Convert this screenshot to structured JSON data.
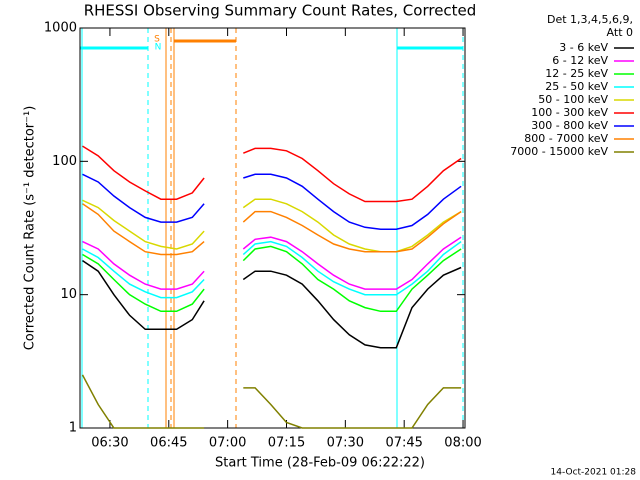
{
  "chart_data": {
    "type": "line",
    "title": "RHESSI Observing Summary Count Rates, Corrected",
    "x_label": "Start Time (28-Feb-09 06:22:22)",
    "y_label": "Corrected Count Rate (s⁻¹ detector⁻¹)",
    "legend_header": [
      "Det 1,3,4,5,6,9,",
      "Att 0"
    ],
    "annotations": [
      "S",
      "N"
    ],
    "footer": "14-Oct-2021 01:28",
    "log_y": true,
    "legend_position": "right",
    "xlim": [
      22.37,
      120.5
    ],
    "ylim": [
      1,
      1000
    ],
    "xticks": [
      {
        "value": 30,
        "label": "06:30"
      },
      {
        "value": 45,
        "label": "06:45"
      },
      {
        "value": 60,
        "label": "07:00"
      },
      {
        "value": 75,
        "label": "07:15"
      },
      {
        "value": 90,
        "label": "07:30"
      },
      {
        "value": 105,
        "label": "07:45"
      },
      {
        "value": 120,
        "label": "08:00"
      }
    ],
    "yticks": [
      1,
      10,
      100,
      1000
    ],
    "x": [
      23,
      27,
      31,
      35,
      39,
      43,
      47,
      51,
      54,
      58,
      64,
      67,
      71,
      75,
      79,
      83,
      87,
      91,
      95,
      99,
      103,
      107,
      111,
      115,
      119.5
    ],
    "series": [
      {
        "name": "3 - 6 keV",
        "color": "#000000",
        "values": [
          18,
          15,
          10,
          7,
          5.5,
          5.5,
          5.5,
          6.5,
          9,
          null,
          13,
          15,
          15,
          14,
          12,
          9,
          6.5,
          5,
          4.2,
          4,
          4,
          8,
          11,
          14,
          16
        ]
      },
      {
        "name": "6 - 12 keV",
        "color": "#ff00ff",
        "values": [
          25,
          22,
          17,
          14,
          12,
          11,
          11,
          12,
          15,
          null,
          22,
          26,
          27,
          25,
          21,
          17,
          14,
          12,
          11,
          11,
          11,
          13,
          17,
          22,
          27
        ]
      },
      {
        "name": "12 - 25 keV",
        "color": "#00ff00",
        "values": [
          20,
          17,
          13,
          10,
          8.5,
          7.5,
          7.5,
          8.5,
          11,
          null,
          18,
          22,
          23,
          21,
          17,
          13,
          11,
          9,
          8,
          7.5,
          7.5,
          11,
          14,
          18,
          22
        ]
      },
      {
        "name": "25 - 50 keV",
        "color": "#00ffff",
        "values": [
          22,
          19,
          15,
          12,
          10.5,
          9.5,
          9.5,
          10.5,
          13,
          null,
          20,
          24,
          25,
          23,
          19,
          15,
          12.5,
          11,
          10,
          10,
          10,
          12,
          15,
          20,
          25
        ]
      },
      {
        "name": "50 - 100 keV",
        "color": "#d8d800",
        "values": [
          51,
          45,
          36,
          30,
          25,
          23,
          22,
          24,
          30,
          null,
          45,
          52,
          52,
          48,
          42,
          35,
          28,
          24,
          22,
          21,
          21,
          23,
          28,
          35,
          42
        ]
      },
      {
        "name": "100 - 300 keV",
        "color": "#ff0000",
        "values": [
          130,
          110,
          85,
          70,
          60,
          52,
          52,
          58,
          75,
          null,
          115,
          125,
          125,
          120,
          105,
          85,
          68,
          57,
          50,
          50,
          50,
          52,
          65,
          85,
          105
        ]
      },
      {
        "name": "300 - 800 keV",
        "color": "#0000ff",
        "values": [
          80,
          70,
          55,
          45,
          38,
          35,
          35,
          38,
          48,
          null,
          75,
          80,
          80,
          75,
          65,
          52,
          42,
          35,
          32,
          31,
          31,
          33,
          40,
          52,
          65
        ]
      },
      {
        "name": "800 - 7000 keV",
        "color": "#ff8000",
        "values": [
          48,
          40,
          30,
          25,
          21,
          20,
          20,
          21,
          25,
          null,
          35,
          42,
          42,
          38,
          33,
          28,
          24,
          22,
          21,
          21,
          21,
          22,
          27,
          34,
          42
        ]
      },
      {
        "name": "7000 - 15000 keV",
        "color": "#808000",
        "values": [
          2.5,
          1.5,
          1,
          1,
          1,
          1,
          1,
          1,
          1,
          null,
          2,
          2,
          1.5,
          1.1,
          1,
          1,
          1,
          1,
          1,
          1,
          1,
          1,
          1.5,
          2,
          2
        ]
      }
    ]
  }
}
